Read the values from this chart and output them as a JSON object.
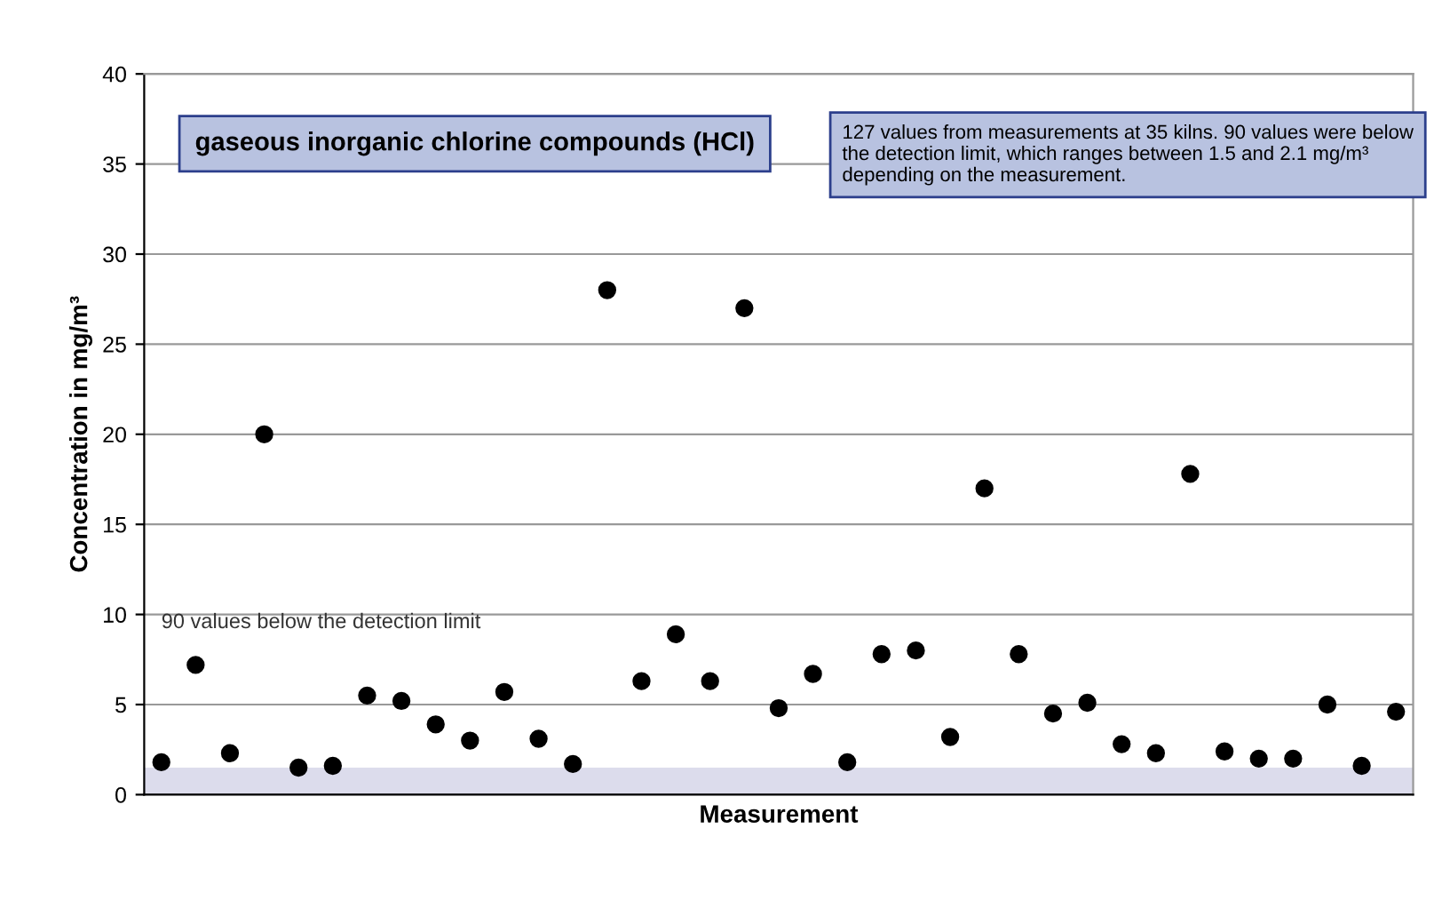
{
  "chart_data": {
    "type": "scatter",
    "title": "gaseous inorganic chlorine compounds (HCl)",
    "xlabel": "Measurement",
    "ylabel": "Concentration in mg/m³",
    "annotations": [
      "127 values from measurements at 35 kilns. 90 values were below the detection limit, which ranges between 1.5 and 2.1 mg/m³ depending on the measurement.",
      "90 values below the detection limit"
    ],
    "categories": [
      null,
      null,
      null,
      null,
      null,
      null,
      null,
      null,
      null,
      null,
      null,
      null,
      null,
      null,
      null,
      null,
      null,
      null,
      null,
      null,
      null,
      null,
      null,
      null,
      null,
      null,
      null,
      null,
      null,
      null,
      null,
      null,
      null,
      null,
      null,
      null,
      null
    ],
    "series": [
      {
        "color": "#000000",
        "values": [
          1.8,
          7.2,
          2.3,
          20,
          1.5,
          1.6,
          5.5,
          5.2,
          3.9,
          3.0,
          5.7,
          3.1,
          1.7,
          28,
          6.3,
          8.9,
          6.3,
          27,
          4.8,
          6.7,
          1.8,
          7.8,
          8.0,
          3.2,
          17.0,
          7.8,
          4.5,
          5.1,
          2.8,
          2.3,
          17.8,
          2.4,
          2.0,
          2.0,
          5.0,
          1.6,
          4.6
        ]
      }
    ],
    "bands": [
      {
        "axis": "y",
        "from": 0,
        "to": 1.5,
        "color": "#dcdcec"
      }
    ],
    "ylim": [
      0,
      40
    ],
    "yticks": [
      0,
      5,
      10,
      15,
      20,
      25,
      30,
      35,
      40
    ],
    "grid": "y",
    "marker": "circle",
    "tick_labels": "y"
  }
}
